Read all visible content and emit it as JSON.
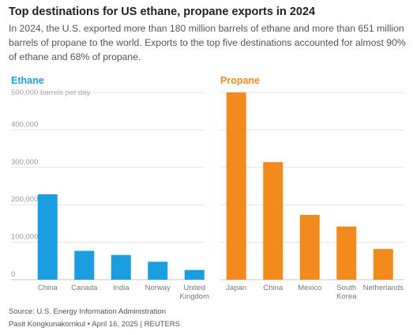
{
  "title": "Top destinations for US ethane, propane exports in 2024",
  "subtitle": "In 2024, the U.S. exported more than 180 million barrels of ethane and more than 651 million barrels of propane to the world. Exports to the top five destinations accounted for almost 90% of ethane and 68% of propane.",
  "footer": {
    "source": "Source: U.S. Energy Information Administration",
    "credit": "Pasit Kongkunakornkul • April 16, 2025 | REUTERS"
  },
  "chart_data": [
    {
      "type": "bar",
      "title": "Ethane",
      "title_color": "#1a9ee0",
      "bar_color": "#1a9ee0",
      "unit_label": "500,000 barrels per day",
      "y_ticks": [
        "0",
        "100,000",
        "200,000",
        "300,000",
        "400,000"
      ],
      "ylim": [
        0,
        500000
      ],
      "grid": true,
      "categories": [
        "China",
        "Canada",
        "India",
        "Norway",
        "United Kingdom"
      ],
      "values": [
        228000,
        77000,
        66000,
        48000,
        26000
      ]
    },
    {
      "type": "bar",
      "title": "Propane",
      "title_color": "#f28a1d",
      "bar_color": "#f28a1d",
      "ylim": [
        0,
        500000
      ],
      "grid": true,
      "categories": [
        "Japan",
        "China",
        "Mexico",
        "South Korea",
        "Netherlands"
      ],
      "values": [
        500000,
        314000,
        173000,
        142000,
        82000
      ]
    }
  ]
}
